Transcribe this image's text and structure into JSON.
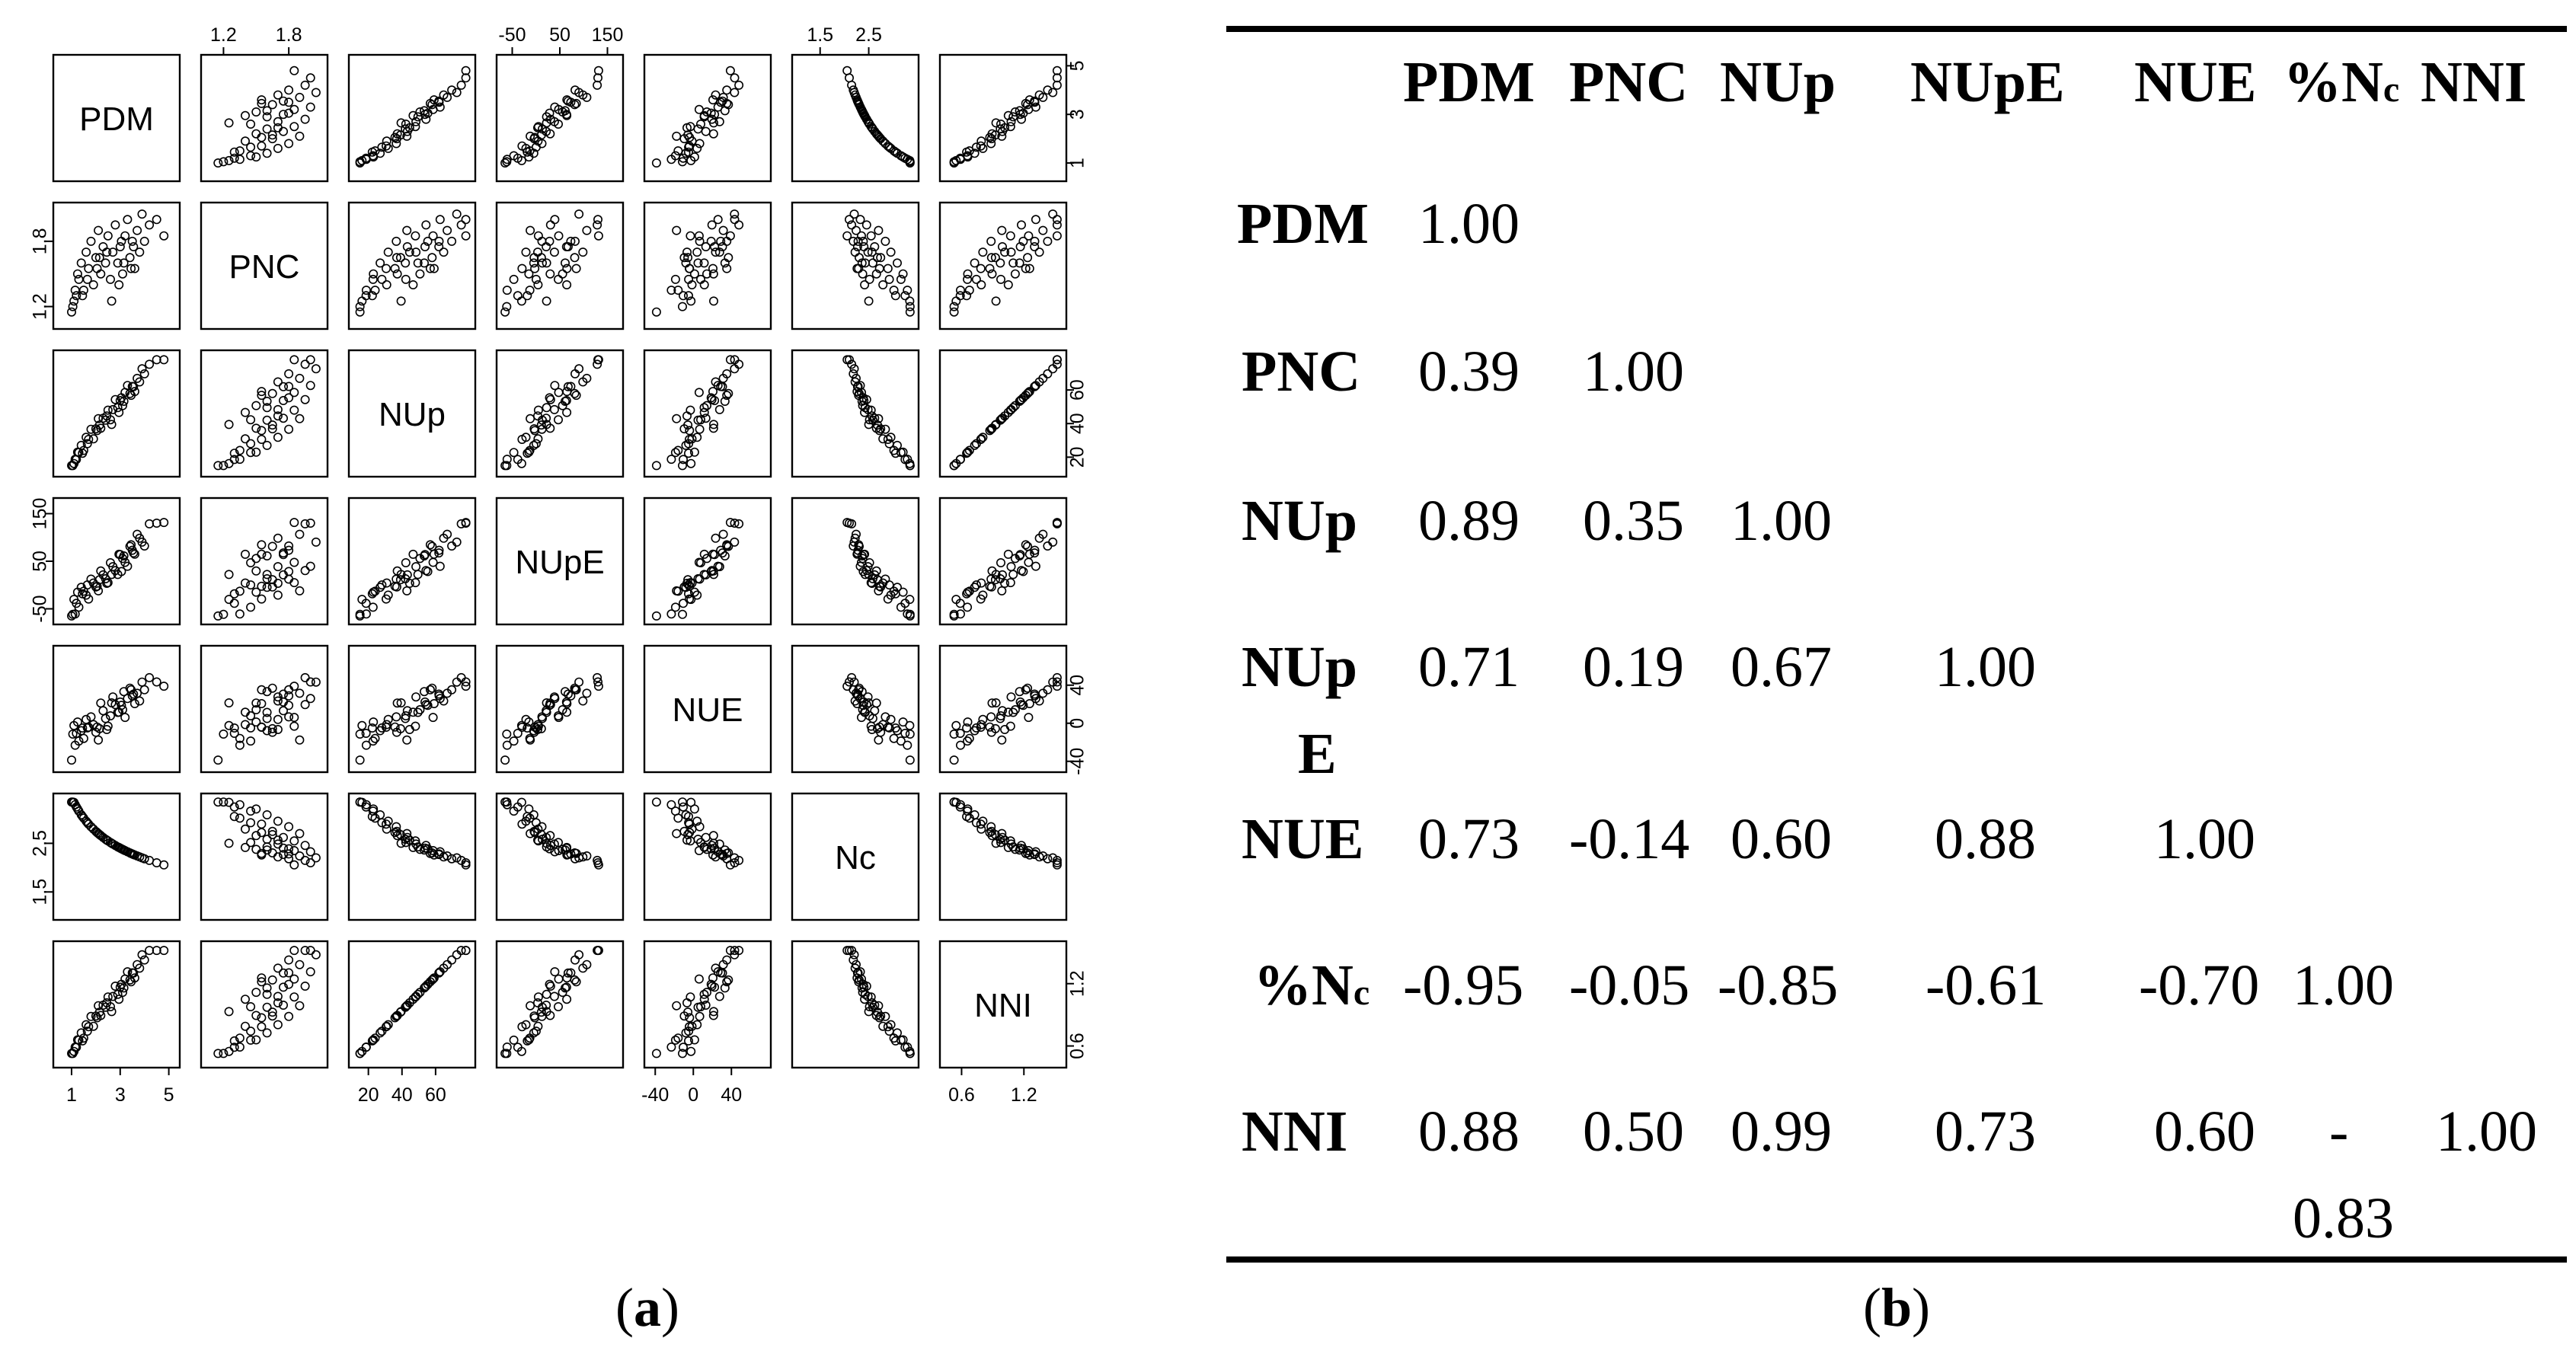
{
  "chart_data": [
    {
      "type": "scatter",
      "variables": [
        "PDM",
        "PNC",
        "NUp",
        "NUpE",
        "NUE",
        "Nc",
        "NNI"
      ],
      "axis_ticks": {
        "PDM": [
          "1",
          "3",
          "5"
        ],
        "PNC": [
          "1.2",
          "1.8"
        ],
        "NUp": [
          "20",
          "40",
          "60"
        ],
        "NUpE": [
          "-50",
          "50",
          "150"
        ],
        "NUE": [
          "-40",
          "0",
          "40"
        ],
        "Nc": [
          "1.5",
          "2.5"
        ],
        "NNI": [
          "0.6",
          "1.2"
        ]
      },
      "ranges": {
        "PDM": [
          0.5,
          5.2
        ],
        "PNC": [
          1.05,
          2.1
        ],
        "NUp": [
          12,
          80
        ],
        "NUpE": [
          -70,
          170
        ],
        "NUE": [
          -45,
          75
        ],
        "Nc": [
          1.05,
          3.4
        ],
        "NNI": [
          0.45,
          1.55
        ]
      },
      "series": [
        {
          "values": {
            "PDM": [
              1.0,
              1.1,
              1.2,
              1.3,
              1.4,
              1.5,
              1.6,
              1.7,
              1.8,
              1.9,
              2.0,
              2.1,
              2.2,
              2.3,
              2.4,
              2.5,
              2.6,
              2.7,
              2.8,
              2.9,
              3.0,
              3.1,
              3.2,
              3.3,
              3.4,
              3.5,
              3.6,
              3.7,
              3.8,
              3.9,
              4.0,
              4.2,
              4.5,
              4.8,
              1.05,
              1.25,
              1.45,
              2.05,
              2.45,
              2.95,
              3.15,
              3.55,
              1.15,
              1.65,
              2.15,
              2.65,
              3.05,
              3.45
            ],
            "PNC": [
              1.15,
              1.25,
              1.3,
              1.45,
              1.6,
              1.35,
              1.7,
              1.55,
              1.8,
              1.4,
              1.65,
              1.9,
              1.5,
              1.75,
              1.6,
              1.85,
              1.45,
              1.7,
              1.95,
              1.6,
              1.75,
              1.5,
              1.85,
              2.0,
              1.65,
              1.8,
              1.55,
              1.9,
              1.7,
              2.05,
              1.8,
              1.95,
              2.0,
              1.85,
              1.2,
              1.5,
              1.3,
              1.55,
              1.7,
              1.4,
              1.6,
              1.75,
              1.35,
              1.45,
              1.65,
              1.25,
              1.8,
              1.55
            ]
          }
        }
      ]
    },
    {
      "type": "table",
      "columns": [
        "PDM",
        "PNC",
        "NUp",
        "NUpE",
        "NUE",
        "%Nc",
        "NNI"
      ],
      "rows": [
        {
          "label": "PDM",
          "values": [
            "1.00"
          ]
        },
        {
          "label": "PNC",
          "values": [
            "0.39",
            "1.00"
          ]
        },
        {
          "label": "NUp",
          "values": [
            "0.89",
            "0.35",
            "1.00"
          ]
        },
        {
          "label": "NUpE",
          "values": [
            "0.71",
            "0.19",
            "0.67",
            "1.00"
          ]
        },
        {
          "label": "NUE",
          "values": [
            "0.73",
            "-0.14",
            "0.60",
            "0.88",
            "1.00"
          ]
        },
        {
          "label": "%Nc",
          "values": [
            "-0.95",
            "-0.05",
            "-0.85",
            "-0.61",
            "-0.70",
            "1.00"
          ]
        },
        {
          "label": "NNI",
          "values": [
            "0.88",
            "0.50",
            "0.99",
            "0.73",
            "0.60",
            "-0.83",
            "1.00"
          ]
        }
      ]
    }
  ],
  "captions": {
    "a_prefix": "(",
    "a_letter": "a",
    "a_suffix": ")",
    "b_prefix": "(",
    "b_letter": "b",
    "b_suffix": ")"
  },
  "table_header": {
    "PDM": "PDM",
    "PNC": "PNC",
    "NUp": "NUp",
    "NUpE": "NUpE",
    "NUE": "NUE",
    "pctN_main": "%N",
    "pctN_sub": "c",
    "NNI": "NNI"
  },
  "table_rows": {
    "r1": "PDM",
    "r2": "PNC",
    "r3": "NUp",
    "r4a": "NUp",
    "r4b": "E",
    "r5": "NUE",
    "r6_main": "%N",
    "r6_sub": "c",
    "r7": "NNI"
  },
  "table_cells": {
    "r1c1": "1.00",
    "r2c1": "0.39",
    "r2c2": "1.00",
    "r3c1": "0.89",
    "r3c2": "0.35",
    "r3c3": "1.00",
    "r4c1": "0.71",
    "r4c2": "0.19",
    "r4c3": "0.67",
    "r4c4": "1.00",
    "r5c1": "0.73",
    "r5c2": "-0.14",
    "r5c3": "0.60",
    "r5c4": "0.88",
    "r5c5": "1.00",
    "r6c1": "-0.95",
    "r6c2": "-0.05",
    "r6c3": "-0.85",
    "r6c4": "-0.61",
    "r6c5": "-0.70",
    "r6c6": "1.00",
    "r7c1": "0.88",
    "r7c2": "0.50",
    "r7c3": "0.99",
    "r7c4": "0.73",
    "r7c5": "0.60",
    "r7c6a": "-",
    "r7c6b": "0.83",
    "r7c7": "1.00"
  }
}
